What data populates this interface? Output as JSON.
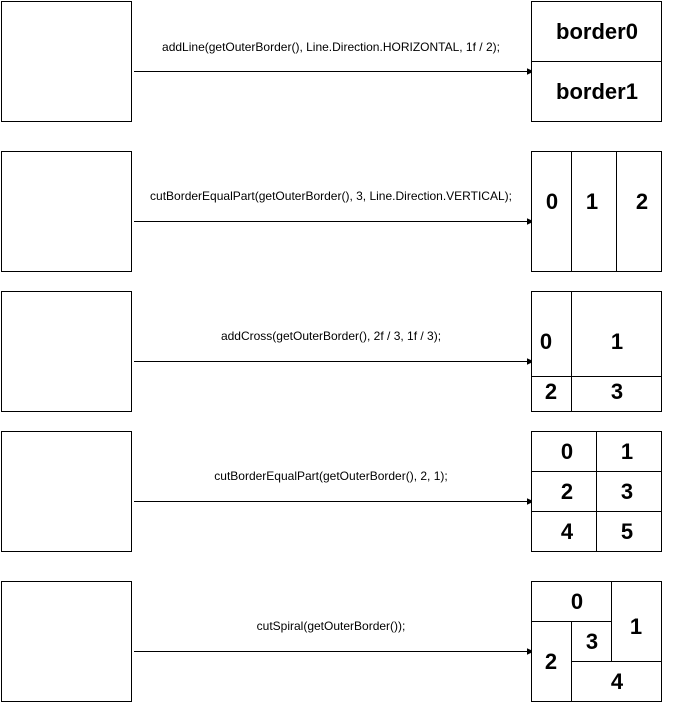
{
  "rows": [
    {
      "code": "addLine(getOuterBorder(), Line.Direction.HORIZONTAL, 1f / 2);",
      "labels": [
        "border0",
        "border1"
      ]
    },
    {
      "code": "cutBorderEqualPart(getOuterBorder(), 3, Line.Direction.VERTICAL);",
      "labels": [
        "0",
        "1",
        "2"
      ]
    },
    {
      "code": "addCross(getOuterBorder(), 2f / 3, 1f / 3);",
      "labels": [
        "0",
        "1",
        "2",
        "3"
      ]
    },
    {
      "code": "cutBorderEqualPart(getOuterBorder(), 2, 1);",
      "labels": [
        "0",
        "1",
        "2",
        "3",
        "4",
        "5"
      ]
    },
    {
      "code": "cutSpiral(getOuterBorder());",
      "labels": [
        "0",
        "1",
        "2",
        "3",
        "4"
      ]
    }
  ]
}
